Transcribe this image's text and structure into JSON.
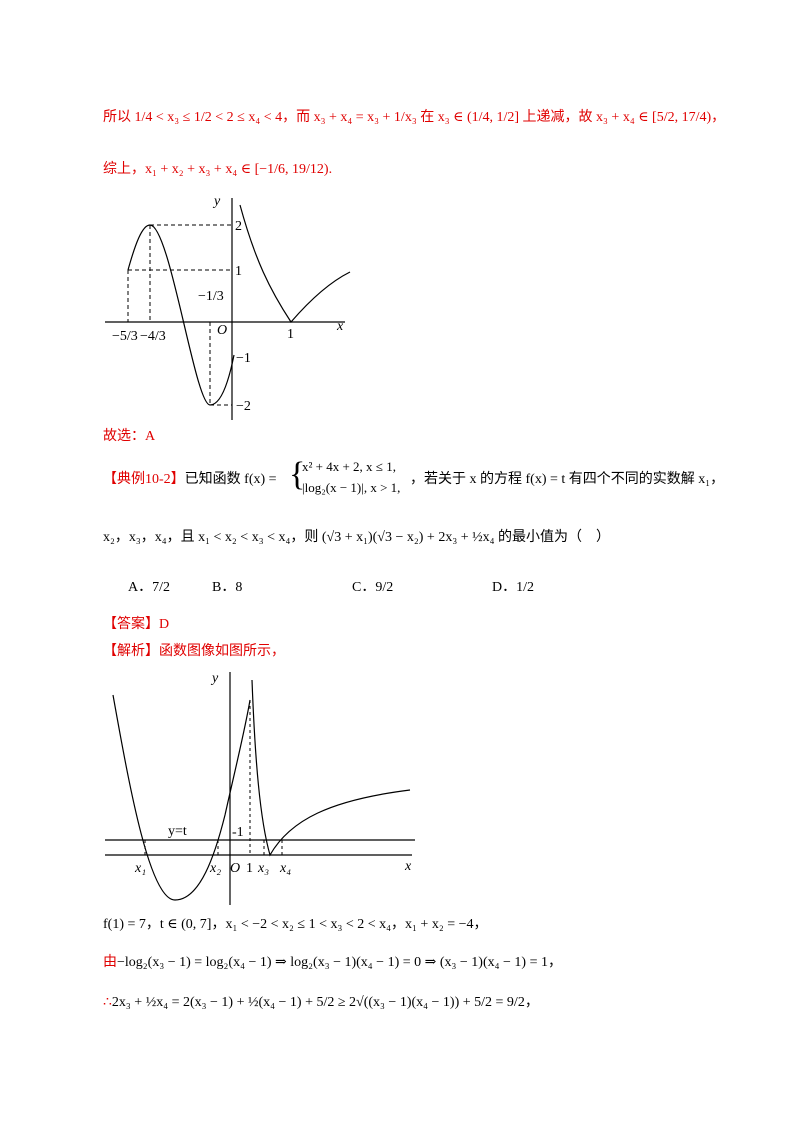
{
  "p1": "所以 1/4 < x₃ ≤ 1/2 < 2 ≤ x₄ < 4，而 x₃ + x₄ = x₃ + 1/x₃ 在 x₃ ∈ (1/4, 1/2] 上递减，故 x₃ + x₄ ∈ [5/2, 17/4)，",
  "p2": "综上，x₁ + x₂ + x₃ + x₄ ∈ [−1/6, 19/12).",
  "figure1": {
    "y": "y",
    "x": "x",
    "two": "2",
    "one": "1",
    "minus_one": "−1",
    "minus_two": "−2",
    "minus_third": "−1/3",
    "origin": "O",
    "x_one": "1",
    "minus_five_thirds": "−5/3",
    "minus_four_thirds": "−4/3"
  },
  "p3": "故选：A",
  "example": {
    "label": "【典例10-2】",
    "text1": "已知函数 f(x) =",
    "case1": "x² + 4x + 2, x ≤ 1,",
    "case2": "|log₂(x − 1)|, x > 1,",
    "text2": "，若关于 x 的方程 f(x) = t 有四个不同的实数解 x₁，",
    "text3": "x₂，x₃，x₄，且 x₁ < x₂ < x₃ < x₄，则 (√3 + x₁)(√3 − x₂) + 2x₃ + ½x₄ 的最小值为（　）"
  },
  "options": [
    "A．7/2",
    "B．8",
    "C．9/2",
    "D．1/2"
  ],
  "answer": {
    "label": "【答案】",
    "text": "D"
  },
  "analysis": {
    "label": "【解析】",
    "text": "函数图像如图所示，"
  },
  "figure2": {
    "y": "y",
    "x": "x",
    "line": "y=t",
    "minus_one": "-1",
    "x1": "x₁",
    "x2": "x₂",
    "origin": "O",
    "one": "1",
    "x3": "x₃",
    "x4": "x₄"
  },
  "s1": "f(1) = 7，t ∈ (0, 7]，x₁ < −2 < x₂ ≤ 1 < x₃ < 2 < x₄，x₁ + x₂ = −4，",
  "s2": {
    "lead": "由",
    "text": "−log₂(x₃ − 1) = log₂(x₄ − 1) ⇒ log₂(x₃ − 1)(x₄ − 1) = 0 ⇒ (x₃ − 1)(x₄ − 1) = 1，"
  },
  "s3": {
    "lead": "∴",
    "text": "2x₃ + ½x₄ = 2(x₃ − 1) + ½(x₄ − 1) + 5/2 ≥ 2√((x₃ − 1)(x₄ − 1)) + 5/2 = 9/2，"
  }
}
